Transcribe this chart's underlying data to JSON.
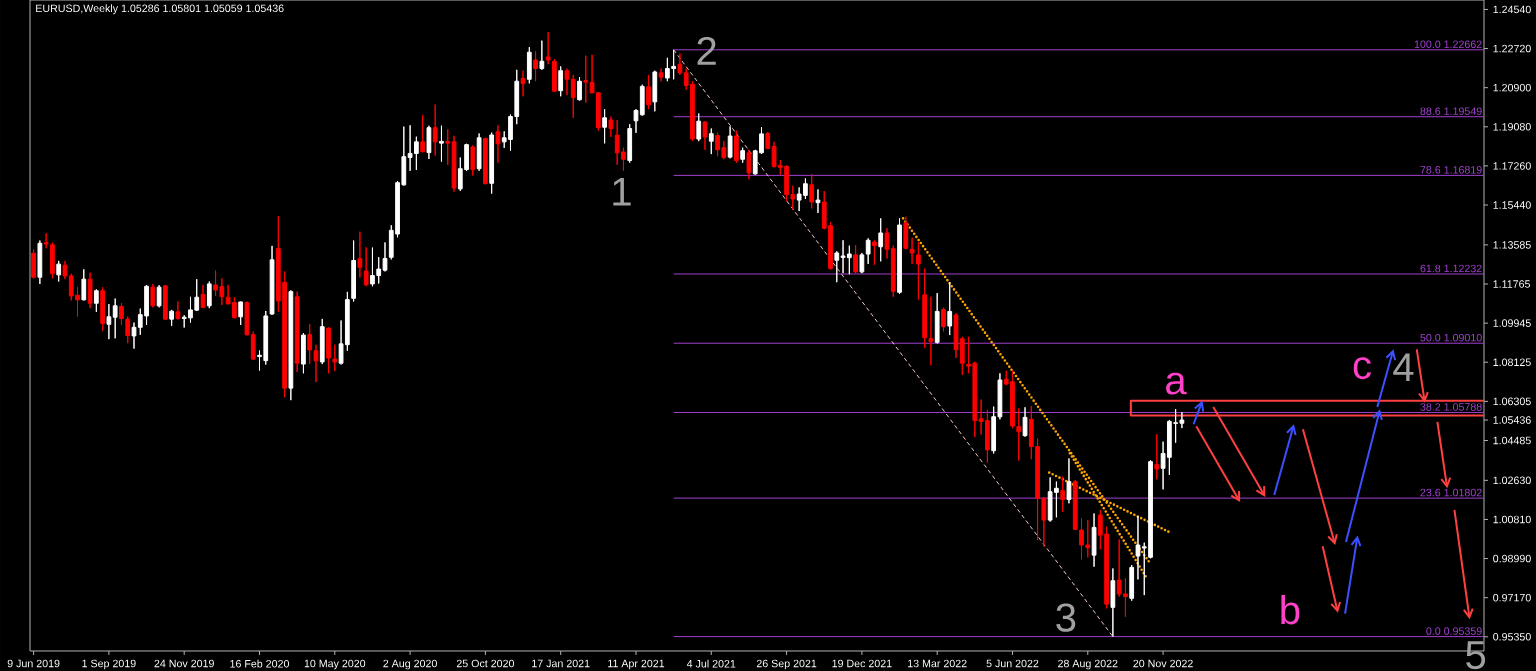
{
  "chart_data": {
    "type": "candlestick",
    "title": "EURUSD,Weekly  1.05286 1.05801 1.05059 1.05436",
    "xlim": [
      "2019-06-05",
      "2023-11-13"
    ],
    "xticks": [
      {
        "value": "2019-06-09",
        "label": "9 Jun 2019"
      },
      {
        "value": "2019-09-01",
        "label": "1 Sep 2019"
      },
      {
        "value": "2019-11-24",
        "label": "24 Nov 2019"
      },
      {
        "value": "2020-02-16",
        "label": "16 Feb 2020"
      },
      {
        "value": "2020-05-10",
        "label": "10 May 2020"
      },
      {
        "value": "2020-08-02",
        "label": "2 Aug 2020"
      },
      {
        "value": "2020-10-25",
        "label": "25 Oct 2020"
      },
      {
        "value": "2021-01-17",
        "label": "17 Jan 2021"
      },
      {
        "value": "2021-04-11",
        "label": "11 Apr 2021"
      },
      {
        "value": "2021-07-04",
        "label": "4 Jul 2021"
      },
      {
        "value": "2021-09-26",
        "label": "26 Sep 2021"
      },
      {
        "value": "2021-12-19",
        "label": "19 Dec 2021"
      },
      {
        "value": "2022-03-13",
        "label": "13 Mar 2022"
      },
      {
        "value": "2022-06-05",
        "label": "5 Jun 2022"
      },
      {
        "value": "2022-08-28",
        "label": "28 Aug 2022"
      },
      {
        "value": "2022-11-20",
        "label": "20 Nov 2022"
      }
    ],
    "ylim": [
      0.9469,
      1.2498
    ],
    "yticks": [
      {
        "value": 1.2454,
        "label": "1.24540"
      },
      {
        "value": 1.2272,
        "label": "1.22720"
      },
      {
        "value": 1.209,
        "label": "1.20900"
      },
      {
        "value": 1.1908,
        "label": "1.19080"
      },
      {
        "value": 1.1726,
        "label": "1.17260"
      },
      {
        "value": 1.1544,
        "label": "1.15440"
      },
      {
        "value": 1.13585,
        "label": "1.13585"
      },
      {
        "value": 1.11765,
        "label": "1.11765"
      },
      {
        "value": 1.09945,
        "label": "1.09945"
      },
      {
        "value": 1.08125,
        "label": "1.08125"
      },
      {
        "value": 1.06305,
        "label": "1.06305"
      },
      {
        "value": 1.05436,
        "label": "1.05436"
      },
      {
        "value": 1.04485,
        "label": "1.04485"
      },
      {
        "value": 1.0263,
        "label": "1.02630"
      },
      {
        "value": 1.0081,
        "label": "1.00810"
      },
      {
        "value": 0.9899,
        "label": "0.98990"
      },
      {
        "value": 0.9717,
        "label": "0.97170"
      },
      {
        "value": 0.9535,
        "label": "0.95350"
      }
    ],
    "series": [
      {
        "x": [
          "2019-06-09",
          "2019-06-16",
          "2019-06-23",
          "2019-06-30",
          "2019-07-07",
          "2019-07-14",
          "2019-07-21",
          "2019-07-28",
          "2019-08-04",
          "2019-08-11",
          "2019-08-18",
          "2019-08-25",
          "2019-09-01",
          "2019-09-08",
          "2019-09-15",
          "2019-09-22",
          "2019-09-29",
          "2019-10-06",
          "2019-10-13",
          "2019-10-20",
          "2019-10-27",
          "2019-11-03",
          "2019-11-10",
          "2019-11-17",
          "2019-11-24",
          "2019-12-01",
          "2019-12-08",
          "2019-12-15",
          "2019-12-22",
          "2019-12-29",
          "2020-01-05",
          "2020-01-12",
          "2020-01-19",
          "2020-01-26",
          "2020-02-02",
          "2020-02-09",
          "2020-02-16",
          "2020-02-23",
          "2020-03-01",
          "2020-03-08",
          "2020-03-15",
          "2020-03-22",
          "2020-03-29",
          "2020-04-05",
          "2020-04-12",
          "2020-04-19",
          "2020-04-26",
          "2020-05-03",
          "2020-05-10",
          "2020-05-17",
          "2020-05-24",
          "2020-05-31",
          "2020-06-07",
          "2020-06-14",
          "2020-06-21",
          "2020-06-28",
          "2020-07-05",
          "2020-07-12",
          "2020-07-19",
          "2020-07-26",
          "2020-08-02",
          "2020-08-09",
          "2020-08-16",
          "2020-08-23",
          "2020-08-30",
          "2020-09-06",
          "2020-09-13",
          "2020-09-20",
          "2020-09-27",
          "2020-10-04",
          "2020-10-11",
          "2020-10-18",
          "2020-10-25",
          "2020-11-01",
          "2020-11-08",
          "2020-11-15",
          "2020-11-22",
          "2020-11-29",
          "2020-12-06",
          "2020-12-13",
          "2020-12-20",
          "2020-12-27",
          "2021-01-03",
          "2021-01-10",
          "2021-01-17",
          "2021-01-24",
          "2021-01-31",
          "2021-02-07",
          "2021-02-14",
          "2021-02-21",
          "2021-02-28",
          "2021-03-07",
          "2021-03-14",
          "2021-03-21",
          "2021-03-28",
          "2021-04-04",
          "2021-04-11",
          "2021-04-18",
          "2021-04-25",
          "2021-05-02",
          "2021-05-09",
          "2021-05-16",
          "2021-05-23",
          "2021-05-30",
          "2021-06-06",
          "2021-06-13",
          "2021-06-20",
          "2021-06-27",
          "2021-07-04",
          "2021-07-11",
          "2021-07-18",
          "2021-07-25",
          "2021-08-01",
          "2021-08-08",
          "2021-08-15",
          "2021-08-22",
          "2021-08-29",
          "2021-09-05",
          "2021-09-12",
          "2021-09-19",
          "2021-09-26",
          "2021-10-03",
          "2021-10-10",
          "2021-10-17",
          "2021-10-24",
          "2021-10-31",
          "2021-11-07",
          "2021-11-14",
          "2021-11-21",
          "2021-11-28",
          "2021-12-05",
          "2021-12-12",
          "2021-12-19",
          "2021-12-26",
          "2022-01-02",
          "2022-01-09",
          "2022-01-16",
          "2022-01-23",
          "2022-01-30",
          "2022-02-06",
          "2022-02-13",
          "2022-02-20",
          "2022-02-27",
          "2022-03-06",
          "2022-03-13",
          "2022-03-20",
          "2022-03-27",
          "2022-04-03",
          "2022-04-10",
          "2022-04-17",
          "2022-04-24",
          "2022-05-01",
          "2022-05-08",
          "2022-05-15",
          "2022-05-22",
          "2022-05-29",
          "2022-06-05",
          "2022-06-12",
          "2022-06-19",
          "2022-06-26",
          "2022-07-03",
          "2022-07-10",
          "2022-07-17",
          "2022-07-24",
          "2022-07-31",
          "2022-08-07",
          "2022-08-14",
          "2022-08-21",
          "2022-08-28",
          "2022-09-04",
          "2022-09-11",
          "2022-09-18",
          "2022-09-25",
          "2022-10-02",
          "2022-10-09",
          "2022-10-16",
          "2022-10-23",
          "2022-10-30",
          "2022-11-06",
          "2022-11-13",
          "2022-11-20",
          "2022-11-27",
          "2022-12-04",
          "2022-12-11"
        ],
        "ohlc": [
          [
            1.132,
            1.1338,
            1.1203,
            1.1208
          ],
          [
            1.1208,
            1.1379,
            1.1177,
            1.1366
          ],
          [
            1.1369,
            1.1413,
            1.1343,
            1.1363
          ],
          [
            1.1359,
            1.1369,
            1.1203,
            1.1224
          ],
          [
            1.1219,
            1.1284,
            1.1188,
            1.1269
          ],
          [
            1.1264,
            1.1284,
            1.1199,
            1.1214
          ],
          [
            1.1214,
            1.1224,
            1.11,
            1.1121
          ],
          [
            1.1124,
            1.1162,
            1.1025,
            1.1103
          ],
          [
            1.1103,
            1.1245,
            1.11,
            1.1199
          ],
          [
            1.1199,
            1.123,
            1.1064,
            1.1087
          ],
          [
            1.1087,
            1.1152,
            1.1047,
            1.1145
          ],
          [
            1.1145,
            1.1162,
            1.0958,
            1.0993
          ],
          [
            1.0989,
            1.1083,
            1.092,
            1.1024
          ],
          [
            1.1022,
            1.1109,
            1.0924,
            1.1075
          ],
          [
            1.1072,
            1.1087,
            1.0986,
            1.1016
          ],
          [
            1.1013,
            1.1025,
            1.0901,
            1.0937
          ],
          [
            1.0935,
            1.0997,
            1.0876,
            1.0975
          ],
          [
            1.0975,
            1.1062,
            1.094,
            1.1034
          ],
          [
            1.1028,
            1.1172,
            1.0986,
            1.1166
          ],
          [
            1.1162,
            1.1177,
            1.1068,
            1.1075
          ],
          [
            1.1075,
            1.1171,
            1.1068,
            1.1162
          ],
          [
            1.1168,
            1.1171,
            1.101,
            1.1013
          ],
          [
            1.1013,
            1.1056,
            1.0982,
            1.105
          ],
          [
            1.1047,
            1.1095,
            1.101,
            1.1016
          ],
          [
            1.1016,
            1.1031,
            1.0974,
            1.1022
          ],
          [
            1.1019,
            1.1117,
            1.0997,
            1.1056
          ],
          [
            1.1055,
            1.1199,
            1.1051,
            1.1115
          ],
          [
            1.1128,
            1.1172,
            1.1064,
            1.1068
          ],
          [
            1.1075,
            1.1188,
            1.1064,
            1.1177
          ],
          [
            1.1172,
            1.1239,
            1.1121,
            1.1149
          ],
          [
            1.1165,
            1.1203,
            1.1079,
            1.1118
          ],
          [
            1.1115,
            1.1172,
            1.1082,
            1.1084
          ],
          [
            1.109,
            1.1115,
            1.1017,
            1.102
          ],
          [
            1.1024,
            1.1095,
            1.0986,
            1.1093
          ],
          [
            1.109,
            1.1095,
            1.0937,
            1.094
          ],
          [
            1.0941,
            1.0955,
            1.0823,
            1.0827
          ],
          [
            1.0839,
            1.0867,
            1.0774,
            1.0845
          ],
          [
            1.082,
            1.1051,
            1.0802,
            1.1028
          ],
          [
            1.1037,
            1.1354,
            1.1033,
            1.1289
          ],
          [
            1.1342,
            1.1492,
            1.1048,
            1.1098
          ],
          [
            1.1184,
            1.1235,
            1.065,
            1.0692
          ],
          [
            1.0692,
            1.1147,
            1.0636,
            1.1141
          ],
          [
            1.1117,
            1.1141,
            1.0767,
            1.0808
          ],
          [
            1.0804,
            1.0948,
            1.0761,
            1.0939
          ],
          [
            1.0941,
            1.099,
            1.0804,
            1.087
          ],
          [
            1.0866,
            1.0894,
            1.072,
            1.0819
          ],
          [
            1.0814,
            1.1014,
            1.0804,
            1.0978
          ],
          [
            1.0971,
            1.0975,
            1.0761,
            1.0832
          ],
          [
            1.0827,
            1.0894,
            1.0771,
            1.0814
          ],
          [
            1.0808,
            1.1007,
            1.0802,
            1.0898
          ],
          [
            1.0894,
            1.114,
            1.0866,
            1.1104
          ],
          [
            1.111,
            1.1379,
            1.1095,
            1.1286
          ],
          [
            1.1295,
            1.142,
            1.1207,
            1.1254
          ],
          [
            1.1237,
            1.1347,
            1.1166,
            1.1173
          ],
          [
            1.1177,
            1.1346,
            1.1166,
            1.1216
          ],
          [
            1.1216,
            1.1301,
            1.1179,
            1.1246
          ],
          [
            1.1241,
            1.137,
            1.1235,
            1.1295
          ],
          [
            1.1301,
            1.145,
            1.1291,
            1.1426
          ],
          [
            1.1409,
            1.1655,
            1.1394,
            1.1648
          ],
          [
            1.1638,
            1.1909,
            1.1634,
            1.1769
          ],
          [
            1.1765,
            1.1915,
            1.1703,
            1.1784
          ],
          [
            1.1784,
            1.1862,
            1.1707,
            1.1838
          ],
          [
            1.1838,
            1.1962,
            1.1788,
            1.1793
          ],
          [
            1.1788,
            1.1913,
            1.1758,
            1.1904
          ],
          [
            1.1904,
            1.2012,
            1.1774,
            1.1838
          ],
          [
            1.1832,
            1.1913,
            1.1746,
            1.184
          ],
          [
            1.184,
            1.1896,
            1.1731,
            1.1832
          ],
          [
            1.1838,
            1.1866,
            1.1606,
            1.1623
          ],
          [
            1.1619,
            1.1765,
            1.161,
            1.1713
          ],
          [
            1.1709,
            1.1829,
            1.1703,
            1.1825
          ],
          [
            1.1814,
            1.1821,
            1.1681,
            1.1709
          ],
          [
            1.1713,
            1.1877,
            1.1703,
            1.1857
          ],
          [
            1.1853,
            1.1857,
            1.1641,
            1.1643
          ],
          [
            1.1645,
            1.1881,
            1.1597,
            1.187
          ],
          [
            1.1885,
            1.1915,
            1.1741,
            1.1829
          ],
          [
            1.1838,
            1.1887,
            1.181,
            1.1857
          ],
          [
            1.1849,
            1.1965,
            1.1797,
            1.1956
          ],
          [
            1.1956,
            1.2173,
            1.192,
            1.212
          ],
          [
            1.2133,
            1.2169,
            1.205,
            1.211
          ],
          [
            1.2129,
            1.2279,
            1.211,
            1.2255
          ],
          [
            1.2219,
            1.2259,
            1.212,
            1.2179
          ],
          [
            1.2179,
            1.2309,
            1.2173,
            1.2213
          ],
          [
            1.2233,
            1.2349,
            1.2199,
            1.2219
          ],
          [
            1.2213,
            1.2223,
            1.207,
            1.2074
          ],
          [
            1.2076,
            1.2189,
            1.205,
            1.2169
          ],
          [
            1.2169,
            1.2179,
            1.2056,
            1.2129
          ],
          [
            1.2129,
            1.2149,
            1.195,
            1.2044
          ],
          [
            1.2034,
            1.2139,
            1.203,
            1.212
          ],
          [
            1.2123,
            1.2239,
            1.202,
            1.2116
          ],
          [
            1.2114,
            1.2243,
            1.2064,
            1.2066
          ],
          [
            1.2066,
            1.207,
            1.189,
            1.1904
          ],
          [
            1.1906,
            1.199,
            1.1831,
            1.195
          ],
          [
            1.194,
            1.1956,
            1.1861,
            1.19
          ],
          [
            1.1869,
            1.194,
            1.1731,
            1.1787
          ],
          [
            1.1791,
            1.1811,
            1.1704,
            1.1757
          ],
          [
            1.1751,
            1.192,
            1.1741,
            1.19
          ],
          [
            1.1936,
            1.199,
            1.188,
            1.1984
          ],
          [
            1.1964,
            1.2104,
            1.196,
            1.2096
          ],
          [
            1.2094,
            1.2149,
            1.199,
            1.201
          ],
          [
            1.2024,
            1.2169,
            1.198,
            1.2163
          ],
          [
            1.2159,
            1.2179,
            1.212,
            1.2139
          ],
          [
            1.2135,
            1.2229,
            1.212,
            1.2179
          ],
          [
            1.2179,
            1.2266,
            1.2129,
            1.2189
          ],
          [
            1.2199,
            1.2249,
            1.2149,
            1.2159
          ],
          [
            1.2159,
            1.2179,
            1.208,
            1.21
          ],
          [
            1.2106,
            1.212,
            1.1841,
            1.1851
          ],
          [
            1.1851,
            1.197,
            1.1841,
            1.1934
          ],
          [
            1.193,
            1.1934,
            1.1801,
            1.1861
          ],
          [
            1.1841,
            1.19,
            1.1781,
            1.1876
          ],
          [
            1.1867,
            1.188,
            1.1771,
            1.1801
          ],
          [
            1.1811,
            1.1841,
            1.1757,
            1.1765
          ],
          [
            1.1767,
            1.191,
            1.1761,
            1.1865
          ],
          [
            1.1865,
            1.189,
            1.1741,
            1.1751
          ],
          [
            1.1757,
            1.1811,
            1.1741,
            1.1797
          ],
          [
            1.1787,
            1.1802,
            1.1664,
            1.1694
          ],
          [
            1.1689,
            1.1801,
            1.1685,
            1.1796
          ],
          [
            1.1787,
            1.1906,
            1.1782,
            1.1875
          ],
          [
            1.1877,
            1.1884,
            1.1804,
            1.1807
          ],
          [
            1.1816,
            1.1838,
            1.1719,
            1.1723
          ],
          [
            1.1728,
            1.1753,
            1.1685,
            1.1719
          ],
          [
            1.1724,
            1.1728,
            1.1562,
            1.1592
          ],
          [
            1.1592,
            1.1634,
            1.1524,
            1.1572
          ],
          [
            1.1567,
            1.1626,
            1.1516,
            1.1595
          ],
          [
            1.1589,
            1.1668,
            1.1572,
            1.1643
          ],
          [
            1.1638,
            1.1689,
            1.1528,
            1.1558
          ],
          [
            1.1555,
            1.1617,
            1.1507,
            1.1567
          ],
          [
            1.1558,
            1.1609,
            1.1431,
            1.1436
          ],
          [
            1.1448,
            1.1465,
            1.1244,
            1.1249
          ],
          [
            1.1287,
            1.1329,
            1.1185,
            1.1321
          ],
          [
            1.13,
            1.138,
            1.1227,
            1.1307
          ],
          [
            1.1299,
            1.1355,
            1.1222,
            1.1316
          ],
          [
            1.1312,
            1.1358,
            1.1227,
            1.1233
          ],
          [
            1.1233,
            1.1321,
            1.1227,
            1.1312
          ],
          [
            1.1316,
            1.1389,
            1.127,
            1.138
          ],
          [
            1.1372,
            1.138,
            1.1266,
            1.1355
          ],
          [
            1.135,
            1.1482,
            1.1282,
            1.1414
          ],
          [
            1.1414,
            1.1436,
            1.1295,
            1.1338
          ],
          [
            1.1341,
            1.1355,
            1.1117,
            1.1143
          ],
          [
            1.1138,
            1.1482,
            1.113,
            1.1451
          ],
          [
            1.1461,
            1.149,
            1.1338,
            1.1343
          ],
          [
            1.1338,
            1.1392,
            1.127,
            1.1321
          ],
          [
            1.1312,
            1.1372,
            1.1104,
            1.127
          ],
          [
            1.1126,
            1.1248,
            1.088,
            1.0927
          ],
          [
            1.0922,
            1.1117,
            1.0798,
            1.0909
          ],
          [
            1.0905,
            1.1134,
            1.09,
            1.1049
          ],
          [
            1.1058,
            1.1066,
            1.0956,
            1.0978
          ],
          [
            1.0981,
            1.1185,
            1.0939,
            1.1049
          ],
          [
            1.1032,
            1.1041,
            1.0832,
            1.0871
          ],
          [
            1.0922,
            1.0931,
            1.0753,
            1.0808
          ],
          [
            1.0803,
            1.0931,
            1.0761,
            1.0795
          ],
          [
            1.0808,
            1.0815,
            1.0464,
            1.0541
          ],
          [
            1.0549,
            1.0639,
            1.0476,
            1.0537
          ],
          [
            1.0541,
            1.0591,
            1.0346,
            1.0405
          ],
          [
            1.0401,
            1.0606,
            1.0388,
            1.0559
          ],
          [
            1.0559,
            1.0761,
            1.0547,
            1.073
          ],
          [
            1.0733,
            1.0773,
            1.0706,
            1.0711
          ],
          [
            1.0722,
            1.0773,
            1.0505,
            1.0516
          ],
          [
            1.0513,
            1.0598,
            1.0354,
            1.0489
          ],
          [
            1.0471,
            1.0603,
            1.0466,
            1.0556
          ],
          [
            1.0547,
            1.0609,
            1.0361,
            1.042
          ],
          [
            1.042,
            1.0458,
            0.9985,
            1.0179
          ],
          [
            1.0179,
            1.0185,
            0.9954,
            1.0078
          ],
          [
            1.0078,
            1.0277,
            1.0071,
            1.021
          ],
          [
            1.0207,
            1.0257,
            1.0091,
            1.0226
          ],
          [
            1.0215,
            1.028,
            1.0117,
            1.0174
          ],
          [
            1.0174,
            1.0365,
            1.0156,
            1.0257
          ],
          [
            1.0257,
            1.0264,
            1.0032,
            1.0035
          ],
          [
            1.0032,
            1.0086,
            0.9895,
            0.9962
          ],
          [
            0.9962,
            1.0078,
            0.9905,
            0.995
          ],
          [
            0.9915,
            1.0109,
            0.9861,
            1.0044
          ],
          [
            1.0102,
            1.0125,
            0.9942,
            1.0008
          ],
          [
            1.0013,
            1.0047,
            0.9667,
            0.9687
          ],
          [
            0.9672,
            0.9853,
            0.95359,
            0.9796
          ],
          [
            0.9799,
            0.9988,
            0.9722,
            0.9734
          ],
          [
            0.9734,
            0.9807,
            0.9628,
            0.9722
          ],
          [
            0.9714,
            0.9869,
            0.9703,
            0.9858
          ],
          [
            0.9911,
            1.0097,
            0.9802,
            0.9962
          ],
          [
            0.9948,
            0.9973,
            0.9729,
            0.9954
          ],
          [
            0.9905,
            1.0357,
            0.99,
            1.035
          ],
          [
            1.0337,
            1.0478,
            1.0268,
            1.0316
          ],
          [
            1.0319,
            1.0443,
            1.0221,
            1.0388
          ],
          [
            1.037,
            1.0544,
            1.0288,
            1.0537
          ],
          [
            1.0528,
            1.0595,
            1.0438,
            1.0531
          ],
          [
            1.05286,
            1.05801,
            1.05059,
            1.05436
          ]
        ],
        "colors": [
          "#ff0000",
          "#ffffff",
          "#ff0000",
          "#ff0000",
          "#ffffff",
          "#ff0000",
          "#ff0000",
          "#ff0000",
          "#ffffff",
          "#ff0000",
          "#ffffff",
          "#ff0000",
          "#ffffff",
          "#ffffff",
          "#ff0000",
          "#ff0000",
          "#ffffff",
          "#ffffff",
          "#ffffff",
          "#ff0000",
          "#ffffff",
          "#ff0000",
          "#ffffff",
          "#ff0000",
          "#ffffff",
          "#ffffff",
          "#ffffff",
          "#ff0000",
          "#ffffff",
          "#ff0000",
          "#ff0000",
          "#ff0000",
          "#ff0000",
          "#ffffff",
          "#ff0000",
          "#ff0000",
          "#ffffff",
          "#ffffff",
          "#ffffff",
          "#ff0000",
          "#ff0000",
          "#ffffff",
          "#ff0000",
          "#ffffff",
          "#ff0000",
          "#ff0000",
          "#ffffff",
          "#ff0000",
          "#ff0000",
          "#ffffff",
          "#ffffff",
          "#ffffff",
          "#ff0000",
          "#ff0000",
          "#ffffff",
          "#ffffff",
          "#ffffff",
          "#ffffff",
          "#ffffff",
          "#ffffff",
          "#ffffff",
          "#ffffff",
          "#ff0000",
          "#ffffff",
          "#ff0000",
          "#ffffff",
          "#ff0000",
          "#ff0000",
          "#ffffff",
          "#ffffff",
          "#ff0000",
          "#ffffff",
          "#ff0000",
          "#ffffff",
          "#ff0000",
          "#ffffff",
          "#ffffff",
          "#ffffff",
          "#ff0000",
          "#ffffff",
          "#ff0000",
          "#ffffff",
          "#ff0000",
          "#ff0000",
          "#ffffff",
          "#ff0000",
          "#ff0000",
          "#ffffff",
          "#ff0000",
          "#ff0000",
          "#ff0000",
          "#ffffff",
          "#ff0000",
          "#ff0000",
          "#ff0000",
          "#ffffff",
          "#ffffff",
          "#ffffff",
          "#ff0000",
          "#ffffff",
          "#ff0000",
          "#ffffff",
          "#ffffff",
          "#ff0000",
          "#ff0000",
          "#ff0000",
          "#ffffff",
          "#ff0000",
          "#ffffff",
          "#ff0000",
          "#ff0000",
          "#ffffff",
          "#ff0000",
          "#ffffff",
          "#ff0000",
          "#ffffff",
          "#ffffff",
          "#ff0000",
          "#ff0000",
          "#ff0000",
          "#ff0000",
          "#ff0000",
          "#ffffff",
          "#ffffff",
          "#ff0000",
          "#ffffff",
          "#ff0000",
          "#ff0000",
          "#ffffff",
          "#ffffff",
          "#ffffff",
          "#ff0000",
          "#ffffff",
          "#ffffff",
          "#ff0000",
          "#ffffff",
          "#ff0000",
          "#ff0000",
          "#ffffff",
          "#ff0000",
          "#ff0000",
          "#ff0000",
          "#ff0000",
          "#ff0000",
          "#ffffff",
          "#ff0000",
          "#ffffff",
          "#ff0000",
          "#ff0000",
          "#ff0000",
          "#ff0000",
          "#ff0000",
          "#ff0000",
          "#ffffff",
          "#ffffff",
          "#ff0000",
          "#ff0000",
          "#ff0000",
          "#ffffff",
          "#ff0000",
          "#ff0000",
          "#ff0000",
          "#ffffff",
          "#ffffff",
          "#ff0000",
          "#ffffff",
          "#ff0000",
          "#ff0000",
          "#ff0000",
          "#ffffff",
          "#ff0000",
          "#ff0000",
          "#ffffff",
          "#ff0000",
          "#ff0000",
          "#ffffff",
          "#ffffff",
          "#ffffff",
          "#ffffff",
          "#ff0000",
          "#ffffff",
          "#ffffff",
          "#ffffff",
          "#ffffff"
        ]
      },
      {
        "type": "line",
        "name": "100.0 1.22662",
        "color": "#a040d0",
        "x": [
          "2021-05-23",
          "2023-11-13"
        ],
        "values": [
          1.22662,
          1.22662
        ]
      },
      {
        "type": "line",
        "name": "88.6 1.19549",
        "color": "#a040d0",
        "x": [
          "2021-05-23",
          "2023-11-13"
        ],
        "values": [
          1.19549,
          1.19549
        ]
      },
      {
        "type": "line",
        "name": "78.6 1.16819",
        "color": "#a040d0",
        "x": [
          "2021-05-23",
          "2023-11-13"
        ],
        "values": [
          1.16819,
          1.16819
        ]
      },
      {
        "type": "line",
        "name": "61.8 1.12232",
        "color": "#a040d0",
        "x": [
          "2021-05-23",
          "2023-11-13"
        ],
        "values": [
          1.12232,
          1.12232
        ]
      },
      {
        "type": "line",
        "name": "50.0 1.09010",
        "color": "#a040d0",
        "x": [
          "2021-05-23",
          "2023-11-13"
        ],
        "values": [
          1.0901,
          1.0901
        ]
      },
      {
        "type": "line",
        "name": "38.2 1.05788",
        "color": "#a040d0",
        "x": [
          "2021-05-23",
          "2023-11-13"
        ],
        "values": [
          1.05788,
          1.05788
        ]
      },
      {
        "type": "line",
        "name": "23.6 1.01802",
        "color": "#a040d0",
        "x": [
          "2021-05-23",
          "2023-11-13"
        ],
        "values": [
          1.01802,
          1.01802
        ]
      },
      {
        "type": "line",
        "name": "0.0 0.95359",
        "color": "#a040d0",
        "x": [
          "2021-05-23",
          "2023-11-13"
        ],
        "values": [
          0.95359,
          0.95359
        ]
      },
      {
        "type": "line",
        "color": "#f0c8c0",
        "line_style": "dashed",
        "x": [
          "2021-05-23",
          "2022-09-25"
        ],
        "values": [
          1.22662,
          0.95359
        ]
      },
      {
        "type": "line",
        "color": "#ffa500",
        "line_style": "dotted",
        "x": [
          "2022-02-03",
          "2022-11-05"
        ],
        "values": [
          1.1482,
          0.988
        ]
      },
      {
        "type": "line",
        "color": "#ffa500",
        "line_style": "dotted",
        "x": [
          "2022-08-08",
          "2022-11-02"
        ],
        "values": [
          1.0389,
          0.9807
        ]
      },
      {
        "type": "line",
        "color": "#ffa500",
        "line_style": "dotted",
        "x": [
          "2022-07-16",
          "2022-11-26"
        ],
        "values": [
          1.0299,
          1.0024
        ]
      },
      {
        "type": "line",
        "color": "#ff4040",
        "x": [
          "2023-11-13",
          "2022-10-15",
          "2022-10-15",
          "2023-11-13"
        ],
        "values": [
          1.0633,
          1.0633,
          1.0565,
          1.0565
        ]
      },
      {
        "type": "line",
        "color": "#3c50ff",
        "line_style": "solid",
        "x": [
          "2022-12-24",
          "2023-01-03"
        ],
        "values": [
          1.0524,
          1.0634
        ]
      },
      {
        "type": "line",
        "color": "#ff4040",
        "line_style": "solid",
        "x": [
          "2022-12-27",
          "2023-02-14"
        ],
        "values": [
          1.0515,
          1.0162
        ]
      },
      {
        "type": "line",
        "color": "#ff4040",
        "line_style": "solid",
        "x": [
          "2023-01-15",
          "2023-03-14"
        ],
        "values": [
          1.0604,
          1.0186
        ]
      },
      {
        "type": "line",
        "color": "#3c50ff",
        "line_style": "solid",
        "x": [
          "2023-03-24",
          "2023-04-15"
        ],
        "values": [
          1.0195,
          1.0524
        ]
      },
      {
        "type": "line",
        "color": "#ff4040",
        "line_style": "solid",
        "x": [
          "2023-04-25",
          "2023-05-31"
        ],
        "values": [
          1.0501,
          0.9962
        ]
      },
      {
        "type": "line",
        "color": "#ff4040",
        "line_style": "solid",
        "x": [
          "2023-05-17",
          "2023-06-03"
        ],
        "values": [
          0.9956,
          0.9647
        ]
      },
      {
        "type": "line",
        "color": "#3c50ff",
        "line_style": "solid",
        "x": [
          "2023-06-11",
          "2023-06-25"
        ],
        "values": [
          0.9643,
          1.0006
        ]
      },
      {
        "type": "line",
        "color": "#3c50ff",
        "line_style": "solid",
        "x": [
          "2023-06-12",
          "2023-07-20"
        ],
        "values": [
          0.9976,
          1.0594
        ]
      },
      {
        "type": "line",
        "color": "#3c50ff",
        "line_style": "solid",
        "x": [
          "2023-07-17",
          "2023-08-04"
        ],
        "values": [
          1.0604,
          1.0873
        ]
      },
      {
        "type": "line",
        "color": "#ff4040",
        "line_style": "solid",
        "x": [
          "2023-08-30",
          "2023-09-08"
        ],
        "values": [
          1.0873,
          1.0624
        ]
      },
      {
        "type": "line",
        "color": "#ff4040",
        "line_style": "solid",
        "x": [
          "2023-09-22",
          "2023-10-03"
        ],
        "values": [
          1.0535,
          1.0226
        ]
      },
      {
        "type": "line",
        "color": "#ff4040",
        "line_style": "solid",
        "x": [
          "2023-10-11",
          "2023-10-28"
        ],
        "values": [
          1.0126,
          0.9617
        ]
      }
    ],
    "annotations": [
      {
        "text": "1",
        "x": "2021-03-28",
        "y": 1.1704
      },
      {
        "text": "2",
        "x": "2021-05-23",
        "y": 1.2266
      },
      {
        "text": "3",
        "x": "2022-09-25",
        "y": 0.95359
      },
      {
        "text": "4",
        "x": "2023-08-04",
        "y": 1.0873
      },
      {
        "text": "a",
        "x": "2023-01-03",
        "y": 1.0634
      },
      {
        "text": "b",
        "x": "2023-06-03",
        "y": 0.9647
      },
      {
        "text": "c",
        "x": "2023-07-20",
        "y": 1.0594
      },
      {
        "text": "5",
        "x": "2023-10-28",
        "y": 0.9617
      }
    ]
  }
}
